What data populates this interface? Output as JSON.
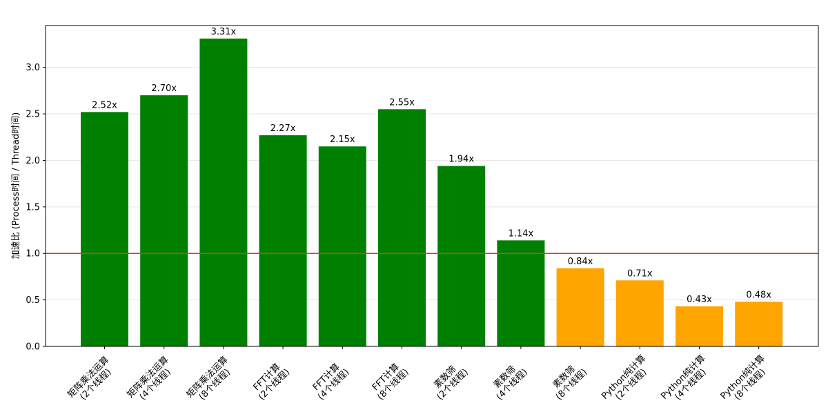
{
  "chart_data": {
    "type": "bar",
    "title": "",
    "xlabel": "",
    "ylabel": "加速比 (Process时间 / Thread时间)",
    "ylim": [
      0,
      3.45
    ],
    "y_ticks": [
      "0.0",
      "0.5",
      "1.0",
      "1.5",
      "2.0",
      "2.5",
      "3.0"
    ],
    "grid": "y-only",
    "reference_line": {
      "y": 1.0,
      "color": "#e8322e"
    },
    "bar_label_suffix": "x",
    "colors": {
      "above": "#008000",
      "below": "#ffa500"
    },
    "categories": [
      [
        "矩阵乘法运算",
        "(2个线程)"
      ],
      [
        "矩阵乘法运算",
        "(4个线程)"
      ],
      [
        "矩阵乘法运算",
        "(8个线程)"
      ],
      [
        "FFT计算",
        "(2个线程)"
      ],
      [
        "FFT计算",
        "(4个线程)"
      ],
      [
        "FFT计算",
        "(8个线程)"
      ],
      [
        "素数筛",
        "(2个线程)"
      ],
      [
        "素数筛",
        "(4个线程)"
      ],
      [
        "素数筛",
        "(8个线程)"
      ],
      [
        "Python纯计算",
        "(2个线程)"
      ],
      [
        "Python纯计算",
        "(4个线程)"
      ],
      [
        "Python纯计算",
        "(8个线程)"
      ]
    ],
    "values": [
      2.52,
      2.7,
      3.31,
      2.27,
      2.15,
      2.55,
      1.94,
      1.14,
      0.84,
      0.71,
      0.43,
      0.48
    ],
    "bar_labels": [
      "2.52x",
      "2.70x",
      "3.31x",
      "2.27x",
      "2.15x",
      "2.55x",
      "1.94x",
      "1.14x",
      "0.84x",
      "0.71x",
      "0.43x",
      "0.48x"
    ]
  }
}
